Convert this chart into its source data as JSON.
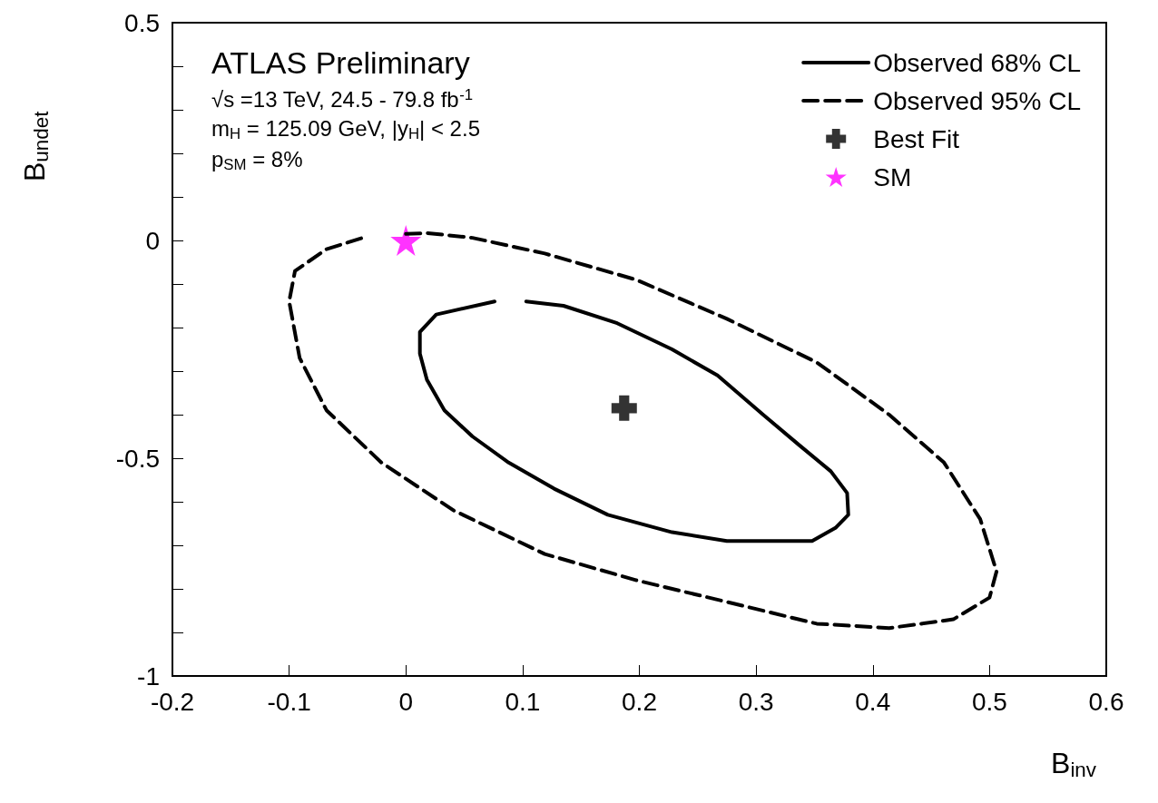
{
  "chart_data": {
    "type": "line",
    "xlabel": "B$_{inv}$",
    "ylabel": "B$_{undet}$",
    "annotations": [
      "ATLAS Preliminary",
      "√s =13 TeV, 24.5 - 79.8 fb$^{-1}$",
      "m$_{H}$ = 125.09 GeV, |y$_{H}$| < 2.5",
      "p$_{SM}$ = 8%"
    ],
    "xlim": [
      -0.2,
      0.6
    ],
    "xticks": [
      -0.2,
      -0.1,
      0,
      0.1,
      0.2,
      0.3,
      0.4,
      0.5,
      0.6
    ],
    "ylim": [
      -1,
      0.5
    ],
    "yticks": [
      -1,
      {
        "value": -0.9,
        "label": null
      },
      {
        "value": -0.8,
        "label": null
      },
      {
        "value": -0.7,
        "label": null
      },
      {
        "value": -0.6,
        "label": null
      },
      -0.5,
      {
        "value": -0.4,
        "label": null
      },
      {
        "value": -0.3,
        "label": null
      },
      {
        "value": -0.2,
        "label": null
      },
      {
        "value": -0.1,
        "label": null
      },
      0,
      {
        "value": 0.1,
        "label": null
      },
      {
        "value": 0.2,
        "label": null
      },
      {
        "value": 0.3,
        "label": null
      },
      {
        "value": 0.4,
        "label": null
      },
      0.5
    ],
    "grid": false,
    "legend": "top right",
    "series": [
      {
        "name": "Observed 68% CL",
        "type": "line",
        "line_style": "solid",
        "marker": "none",
        "color": "#000000",
        "x": [
          0.076,
          0.026,
          0.012,
          0.012,
          0.018,
          0.033,
          0.057,
          0.088,
          0.127,
          0.173,
          0.228,
          0.275,
          0.298,
          0.348,
          0.368,
          0.379,
          0.378,
          0.364,
          0.337,
          0.306,
          0.267,
          0.228,
          0.181,
          0.135,
          0.103
        ],
        "values": [
          -0.14,
          -0.17,
          -0.21,
          -0.26,
          -0.32,
          -0.39,
          -0.45,
          -0.51,
          -0.57,
          -0.63,
          -0.67,
          -0.69,
          -0.69,
          -0.69,
          -0.66,
          -0.63,
          -0.58,
          -0.53,
          -0.47,
          -0.4,
          -0.31,
          -0.25,
          -0.19,
          -0.15,
          -0.14
        ]
      },
      {
        "name": "Observed 95% CL",
        "type": "line",
        "line_style": "dashed",
        "marker": "none",
        "color": "#000000",
        "x": [
          0,
          0.018,
          0.057,
          0.119,
          0.197,
          0.275,
          0.352,
          0.414,
          0.461,
          0.492,
          0.506,
          0.5,
          0.469,
          0.414,
          0.352,
          0.275,
          0.197,
          0.119,
          0.041,
          -0.021,
          -0.068,
          -0.091,
          -0.1,
          -0.095,
          -0.068,
          -0.037
        ],
        "values": [
          0.015,
          0.017,
          0.006,
          -0.03,
          -0.09,
          -0.18,
          -0.28,
          -0.4,
          -0.51,
          -0.64,
          -0.76,
          -0.82,
          -0.87,
          -0.89,
          -0.88,
          -0.83,
          -0.78,
          -0.72,
          -0.62,
          -0.51,
          -0.39,
          -0.27,
          -0.14,
          -0.07,
          -0.02,
          0.006
        ]
      },
      {
        "name": "Best Fit",
        "type": "scatter",
        "marker": "cross",
        "color": "#000000",
        "x": [
          0.187
        ],
        "values": [
          -0.385
        ]
      },
      {
        "name": "SM",
        "type": "scatter",
        "marker": "star",
        "color": "#ff00ff",
        "x": [
          0
        ],
        "values": [
          0
        ]
      }
    ]
  }
}
